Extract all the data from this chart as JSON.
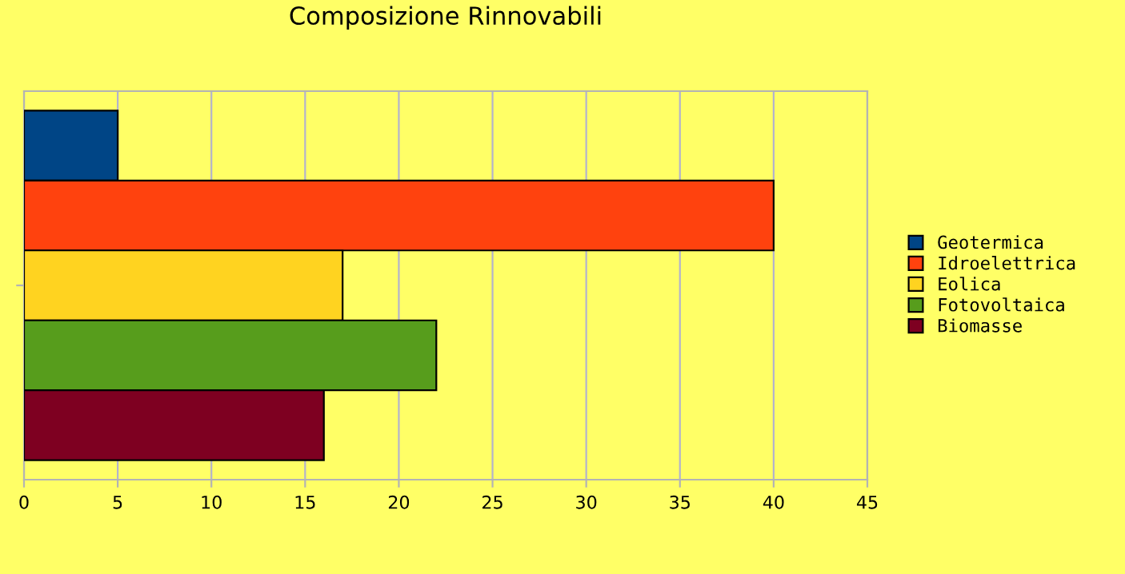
{
  "chart_data": {
    "type": "bar",
    "orientation": "horizontal",
    "title": "Composizione Rinnovabili",
    "categories": [
      null
    ],
    "series": [
      {
        "name": "Geotermica",
        "color": "#004586",
        "values": [
          5
        ]
      },
      {
        "name": "Idroelettrica",
        "color": "#ff420e",
        "values": [
          40
        ]
      },
      {
        "name": "Eolica",
        "color": "#ffd320",
        "values": [
          17
        ]
      },
      {
        "name": "Fotovoltaica",
        "color": "#579d1c",
        "values": [
          22
        ]
      },
      {
        "name": "Biomasse",
        "color": "#7e0021",
        "values": [
          16
        ]
      }
    ],
    "xlim": [
      0,
      45
    ],
    "xticks": [
      0,
      5,
      10,
      15,
      20,
      25,
      30,
      35,
      40,
      45
    ],
    "grid": "x",
    "legend": "right"
  }
}
